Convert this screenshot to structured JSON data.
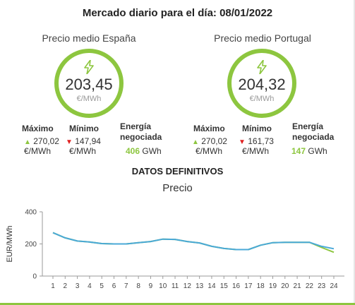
{
  "title": "Mercado diario para el día: 08/01/2022",
  "spain": {
    "title": "Precio medio España",
    "price": "203,45",
    "unit": "€/MWh",
    "max_label": "Máximo",
    "max_value": "270,02",
    "max_unit": "€/MWh",
    "min_label": "Mínimo",
    "min_value": "147,94",
    "min_unit": "€/MWh",
    "energy_label_1": "Energía",
    "energy_label_2": "negociada",
    "energy_value": "406",
    "energy_unit": "GWh"
  },
  "portugal": {
    "title": "Precio medio Portugal",
    "price": "204,32",
    "unit": "€/MWh",
    "max_label": "Máximo",
    "max_value": "270,02",
    "max_unit": "€/MWh",
    "min_label": "Mínimo",
    "min_value": "161,73",
    "min_unit": "€/MWh",
    "energy_label_1": "Energía",
    "energy_label_2": "negociada",
    "energy_value": "147",
    "energy_unit": "GWh"
  },
  "icons": {
    "price_icon": "lightning-bolt-icon",
    "max_icon": "triangle-up-icon",
    "min_icon": "triangle-down-icon"
  },
  "colors": {
    "accent": "#8dc63f",
    "down": "#e02020",
    "portugal_series": "#4aa9d8"
  },
  "section_title": "DATOS DEFINITIVOS",
  "chart_data": {
    "type": "line",
    "title": "Precio",
    "ylabel": "EUR/MWh",
    "xlabel": "",
    "ylim": [
      0,
      400
    ],
    "yticks": [
      0,
      200,
      400
    ],
    "x": [
      1,
      2,
      3,
      4,
      5,
      6,
      7,
      8,
      9,
      10,
      11,
      12,
      13,
      14,
      15,
      16,
      17,
      18,
      19,
      20,
      21,
      22,
      23,
      24
    ],
    "series": [
      {
        "values": [
          270,
          238,
          218,
          212,
          202,
          200,
          200,
          208,
          215,
          230,
          228,
          215,
          206,
          185,
          172,
          165,
          165,
          192,
          208,
          210,
          210,
          210,
          185,
          170
        ]
      },
      {
        "values": [
          270,
          238,
          218,
          212,
          202,
          200,
          200,
          208,
          215,
          230,
          228,
          215,
          206,
          185,
          172,
          165,
          165,
          192,
          208,
          210,
          210,
          210,
          178,
          148
        ]
      }
    ],
    "legend": "none",
    "grid": false
  }
}
